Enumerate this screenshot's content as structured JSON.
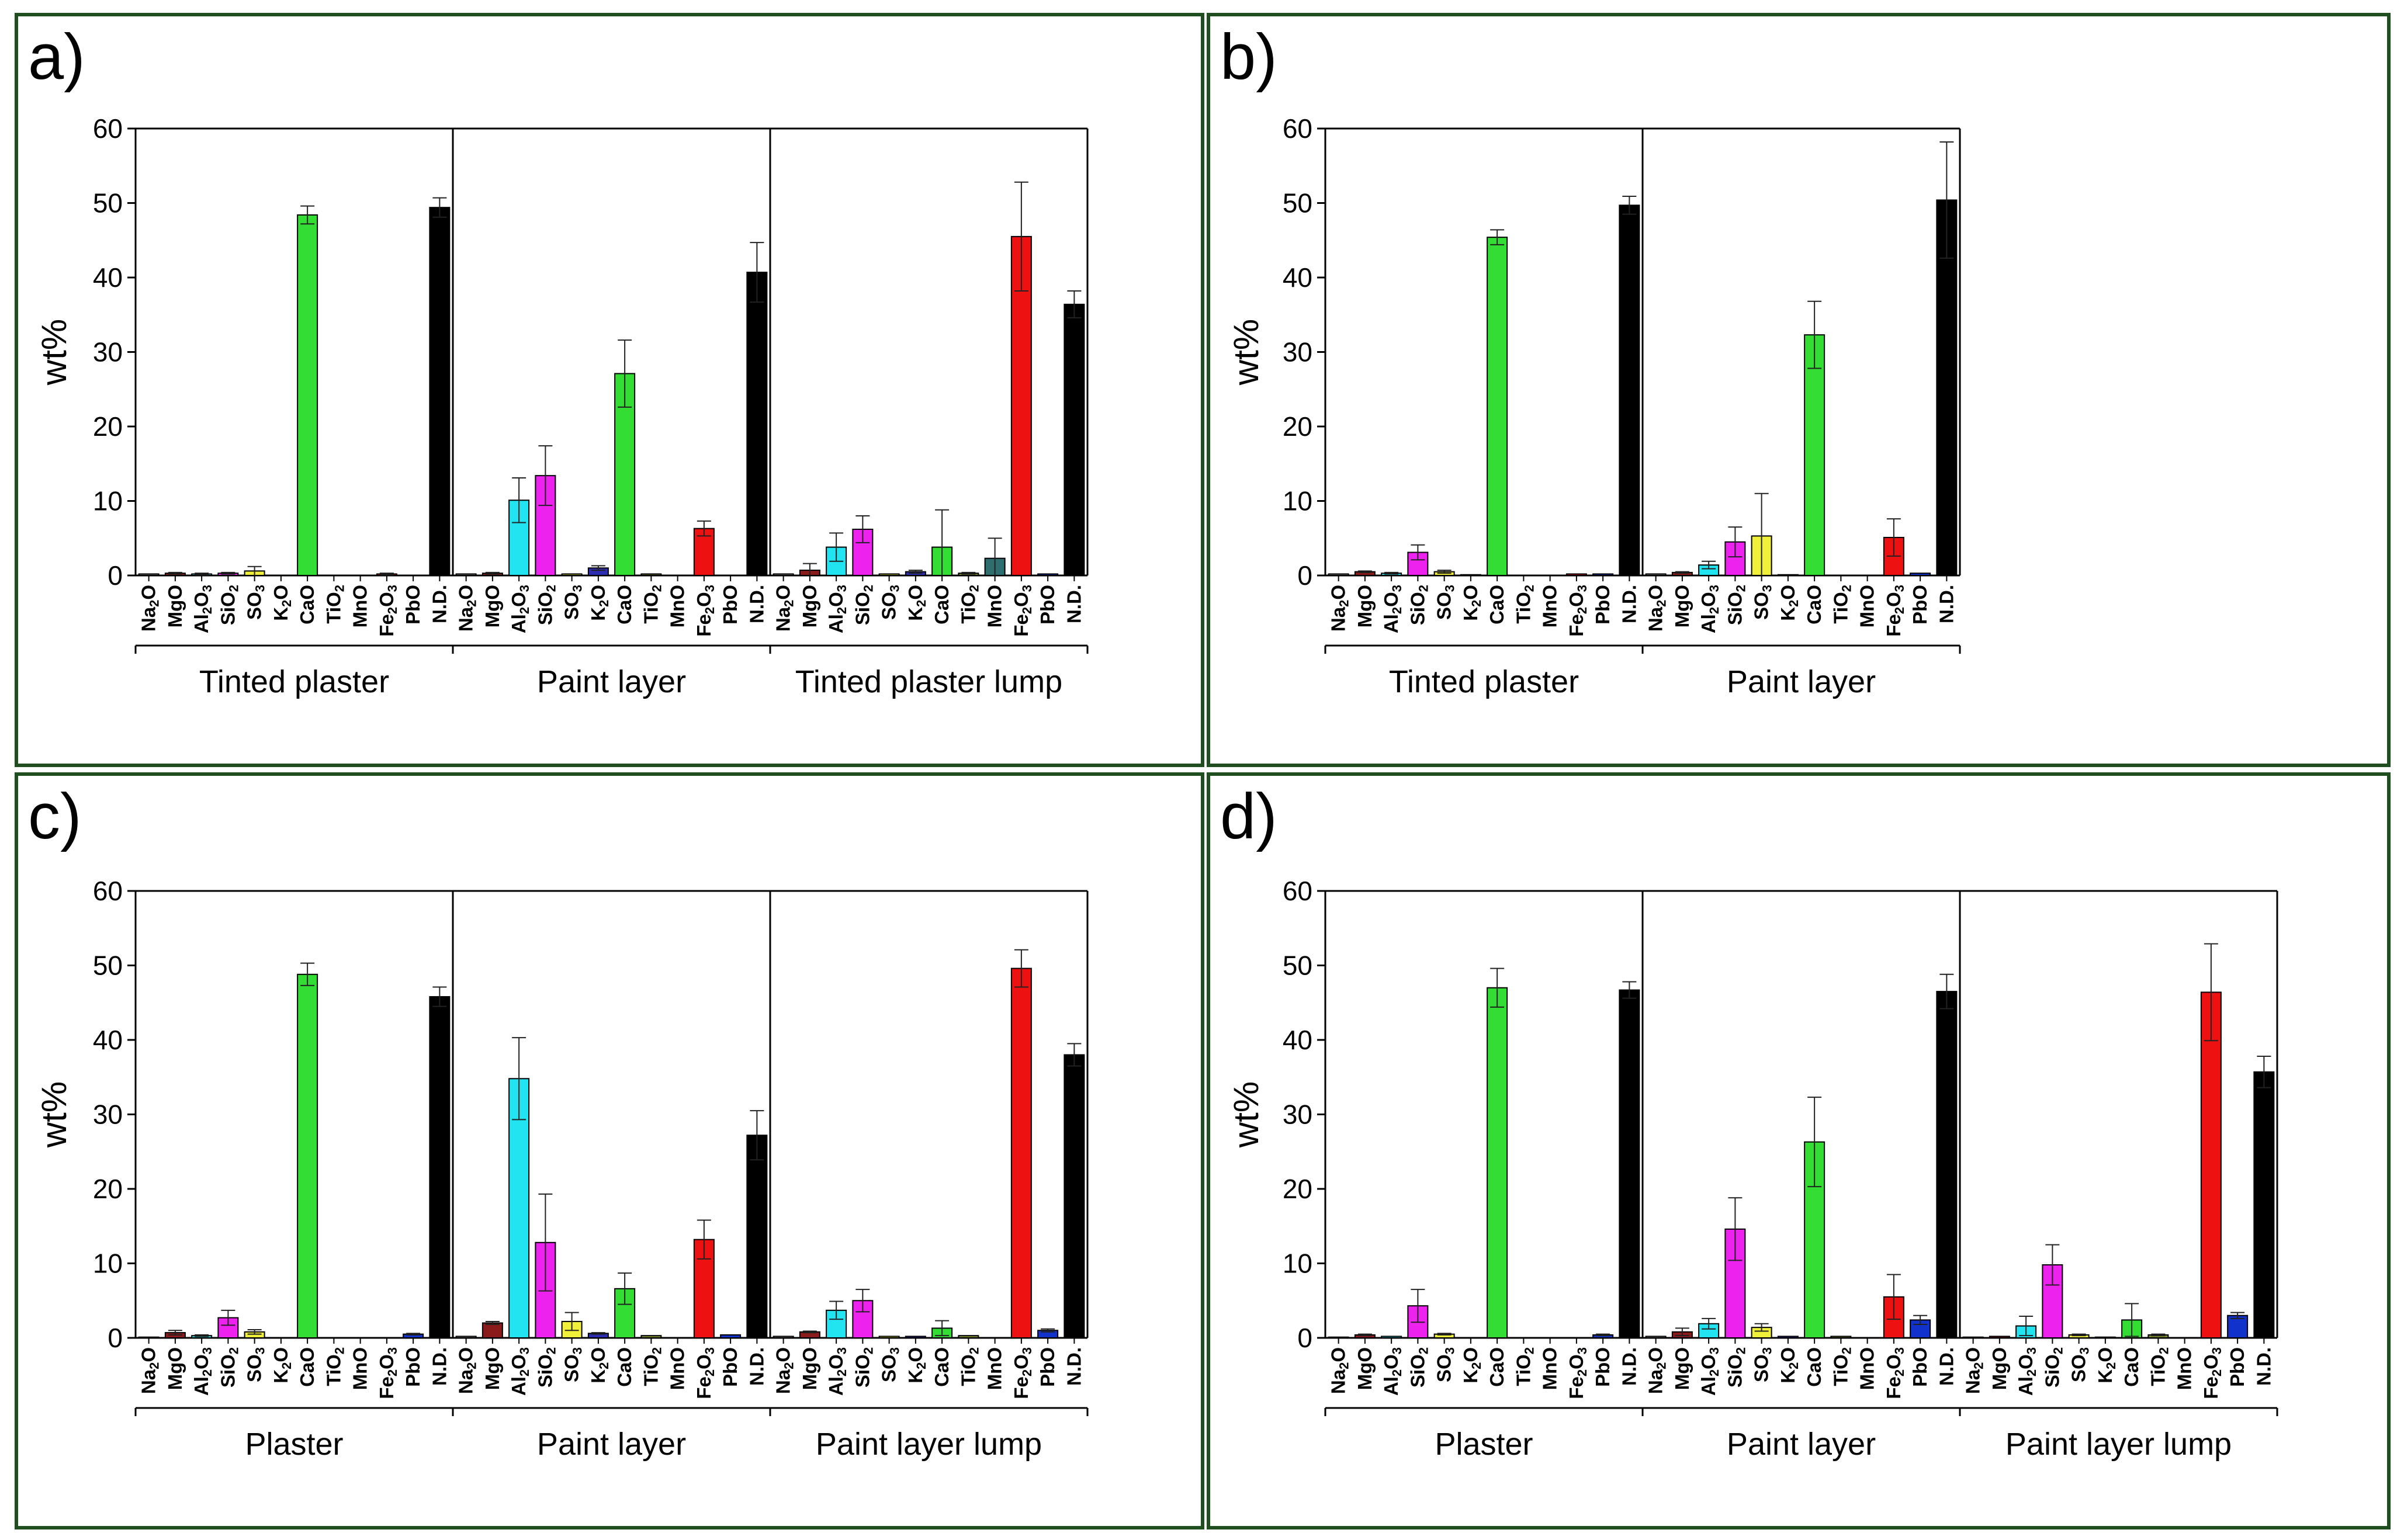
{
  "colors": {
    "Na2O": "#8a8a8a",
    "MgO": "#8b1a1a",
    "Al2O3": "#22e3f0",
    "SiO2": "#ee22ee",
    "SO3": "#f0ef3a",
    "K2O": "#2d2db4",
    "CaO": "#33dd33",
    "TiO2": "#7a8c2a",
    "MnO": "#2e6e6e",
    "Fe2O3": "#ee1111",
    "PbO": "#1133cc",
    "N.D.": "#000000",
    "frame": "#1f4f1f"
  },
  "oxide_display": {
    "Na2O": [
      "Na",
      "2",
      "O"
    ],
    "MgO": [
      "MgO",
      "",
      ""
    ],
    "Al2O3": [
      "Al",
      "2",
      "O",
      "3"
    ],
    "SiO2": [
      "SiO",
      "2",
      ""
    ],
    "SO3": [
      "SO",
      "3",
      ""
    ],
    "K2O": [
      "K",
      "2",
      "O"
    ],
    "CaO": [
      "CaO",
      "",
      ""
    ],
    "TiO2": [
      "TiO",
      "2",
      ""
    ],
    "MnO": [
      "MnO",
      "",
      ""
    ],
    "Fe2O3": [
      "Fe",
      "2",
      "O",
      "3"
    ],
    "PbO": [
      "PbO",
      "",
      ""
    ],
    "N.D.": [
      "N.D.",
      "",
      ""
    ]
  },
  "chart_data": [
    {
      "panel": "a)",
      "type": "bar",
      "ylabel": "wt%",
      "ylim": [
        0,
        60
      ],
      "yticks": [
        0,
        10,
        20,
        30,
        40,
        50,
        60
      ],
      "groups": [
        {
          "name": "Tinted plaster",
          "categories": [
            "Na2O",
            "MgO",
            "Al2O3",
            "SiO2",
            "SO3",
            "K2O",
            "CaO",
            "TiO2",
            "MnO",
            "Fe2O3",
            "PbO",
            "N.D."
          ],
          "values": [
            0.2,
            0.3,
            0.2,
            0.3,
            0.6,
            0,
            48.4,
            0,
            0,
            0.2,
            0,
            49.4
          ],
          "errors": [
            0,
            0.1,
            0.1,
            0.1,
            0.6,
            0,
            1.2,
            0,
            0,
            0.1,
            0,
            1.3
          ]
        },
        {
          "name": "Paint layer",
          "categories": [
            "Na2O",
            "MgO",
            "Al2O3",
            "SiO2",
            "SO3",
            "K2O",
            "CaO",
            "TiO2",
            "MnO",
            "Fe2O3",
            "PbO",
            "N.D."
          ],
          "values": [
            0.2,
            0.3,
            10.1,
            13.4,
            0.2,
            1.0,
            27.1,
            0.2,
            0,
            6.3,
            0,
            40.7
          ],
          "errors": [
            0,
            0.1,
            3.0,
            4.0,
            0,
            0.3,
            4.5,
            0,
            0,
            1.0,
            0,
            4.0
          ]
        },
        {
          "name": "Tinted plaster lump",
          "categories": [
            "Na2O",
            "MgO",
            "Al2O3",
            "SiO2",
            "SO3",
            "K2O",
            "CaO",
            "TiO2",
            "MnO",
            "Fe2O3",
            "PbO",
            "N.D."
          ],
          "values": [
            0.2,
            0.7,
            3.8,
            6.2,
            0.2,
            0.5,
            3.8,
            0.3,
            2.3,
            45.5,
            0.2,
            36.4
          ],
          "errors": [
            0,
            0.9,
            1.9,
            1.8,
            0,
            0.2,
            5.0,
            0.1,
            2.7,
            7.3,
            0,
            1.8
          ]
        }
      ]
    },
    {
      "panel": "b)",
      "type": "bar",
      "ylabel": "wt%",
      "ylim": [
        0,
        60
      ],
      "yticks": [
        0,
        10,
        20,
        30,
        40,
        50,
        60
      ],
      "groups": [
        {
          "name": "Tinted plaster",
          "categories": [
            "Na2O",
            "MgO",
            "Al2O3",
            "SiO2",
            "SO3",
            "K2O",
            "CaO",
            "TiO2",
            "MnO",
            "Fe2O3",
            "PbO",
            "N.D."
          ],
          "values": [
            0.2,
            0.5,
            0.3,
            3.1,
            0.5,
            0.1,
            45.4,
            0,
            0,
            0.2,
            0.2,
            49.7
          ],
          "errors": [
            0,
            0.1,
            0.1,
            1.0,
            0.2,
            0,
            1.0,
            0,
            0,
            0,
            0,
            1.2
          ]
        },
        {
          "name": "Paint layer",
          "categories": [
            "Na2O",
            "MgO",
            "Al2O3",
            "SiO2",
            "SO3",
            "K2O",
            "CaO",
            "TiO2",
            "MnO",
            "Fe2O3",
            "PbO",
            "N.D."
          ],
          "values": [
            0.2,
            0.4,
            1.4,
            4.5,
            5.3,
            0.1,
            32.3,
            0,
            0,
            5.1,
            0.3,
            50.4
          ],
          "errors": [
            0,
            0.1,
            0.5,
            2.0,
            5.7,
            0,
            4.5,
            0,
            0,
            2.5,
            0,
            7.8
          ]
        }
      ]
    },
    {
      "panel": "c)",
      "type": "bar",
      "ylabel": "wt%",
      "ylim": [
        0,
        60
      ],
      "yticks": [
        0,
        10,
        20,
        30,
        40,
        50,
        60
      ],
      "groups": [
        {
          "name": "Plaster",
          "categories": [
            "Na2O",
            "MgO",
            "Al2O3",
            "SiO2",
            "SO3",
            "K2O",
            "CaO",
            "TiO2",
            "MnO",
            "Fe2O3",
            "PbO",
            "N.D."
          ],
          "values": [
            0.1,
            0.7,
            0.3,
            2.7,
            0.8,
            0,
            48.8,
            0,
            0,
            0,
            0.5,
            45.8
          ],
          "errors": [
            0,
            0.3,
            0.1,
            1.0,
            0.3,
            0,
            1.5,
            0,
            0,
            0,
            0.1,
            1.3
          ]
        },
        {
          "name": "Paint layer",
          "categories": [
            "Na2O",
            "MgO",
            "Al2O3",
            "SiO2",
            "SO3",
            "K2O",
            "CaO",
            "TiO2",
            "MnO",
            "Fe2O3",
            "PbO",
            "N.D."
          ],
          "values": [
            0.2,
            2.0,
            34.8,
            12.8,
            2.2,
            0.6,
            6.6,
            0.3,
            0,
            13.2,
            0.4,
            27.2
          ],
          "errors": [
            0,
            0.2,
            5.5,
            6.5,
            1.2,
            0.1,
            2.1,
            0,
            0,
            2.6,
            0,
            3.3
          ]
        },
        {
          "name": "Paint layer lump",
          "categories": [
            "Na2O",
            "MgO",
            "Al2O3",
            "SiO2",
            "SO3",
            "K2O",
            "CaO",
            "TiO2",
            "MnO",
            "Fe2O3",
            "PbO",
            "N.D."
          ],
          "values": [
            0.2,
            0.8,
            3.7,
            5.0,
            0.2,
            0.2,
            1.3,
            0.3,
            0,
            49.6,
            1.0,
            38.0
          ],
          "errors": [
            0,
            0.1,
            1.2,
            1.5,
            0,
            0,
            1.0,
            0,
            0,
            2.5,
            0.2,
            1.5
          ]
        }
      ]
    },
    {
      "panel": "d)",
      "type": "bar",
      "ylabel": "wt%",
      "ylim": [
        0,
        60
      ],
      "yticks": [
        0,
        10,
        20,
        30,
        40,
        50,
        60
      ],
      "groups": [
        {
          "name": "Plaster",
          "categories": [
            "Na2O",
            "MgO",
            "Al2O3",
            "SiO2",
            "SO3",
            "K2O",
            "CaO",
            "TiO2",
            "MnO",
            "Fe2O3",
            "PbO",
            "N.D."
          ],
          "values": [
            0.1,
            0.4,
            0.2,
            4.3,
            0.5,
            0,
            47.0,
            0,
            0,
            0,
            0.4,
            46.7
          ],
          "errors": [
            0,
            0.1,
            0,
            2.2,
            0.1,
            0,
            2.6,
            0,
            0,
            0,
            0.1,
            1.1
          ]
        },
        {
          "name": "Paint layer",
          "categories": [
            "Na2O",
            "MgO",
            "Al2O3",
            "SiO2",
            "SO3",
            "K2O",
            "CaO",
            "TiO2",
            "MnO",
            "Fe2O3",
            "PbO",
            "N.D."
          ],
          "values": [
            0.2,
            0.8,
            1.9,
            14.6,
            1.4,
            0.2,
            26.3,
            0.2,
            0,
            5.5,
            2.4,
            46.5
          ],
          "errors": [
            0,
            0.5,
            0.7,
            4.2,
            0.5,
            0,
            6.0,
            0,
            0,
            3.0,
            0.6,
            2.3
          ]
        },
        {
          "name": "Paint layer lump",
          "categories": [
            "Na2O",
            "MgO",
            "Al2O3",
            "SiO2",
            "SO3",
            "K2O",
            "CaO",
            "TiO2",
            "MnO",
            "Fe2O3",
            "PbO",
            "N.D."
          ],
          "values": [
            0.1,
            0.2,
            1.6,
            9.8,
            0.4,
            0.1,
            2.4,
            0.4,
            0,
            46.4,
            3.0,
            35.7
          ],
          "errors": [
            0,
            0,
            1.3,
            2.7,
            0.1,
            0,
            2.2,
            0.1,
            0,
            6.5,
            0.4,
            2.1
          ]
        }
      ]
    }
  ]
}
